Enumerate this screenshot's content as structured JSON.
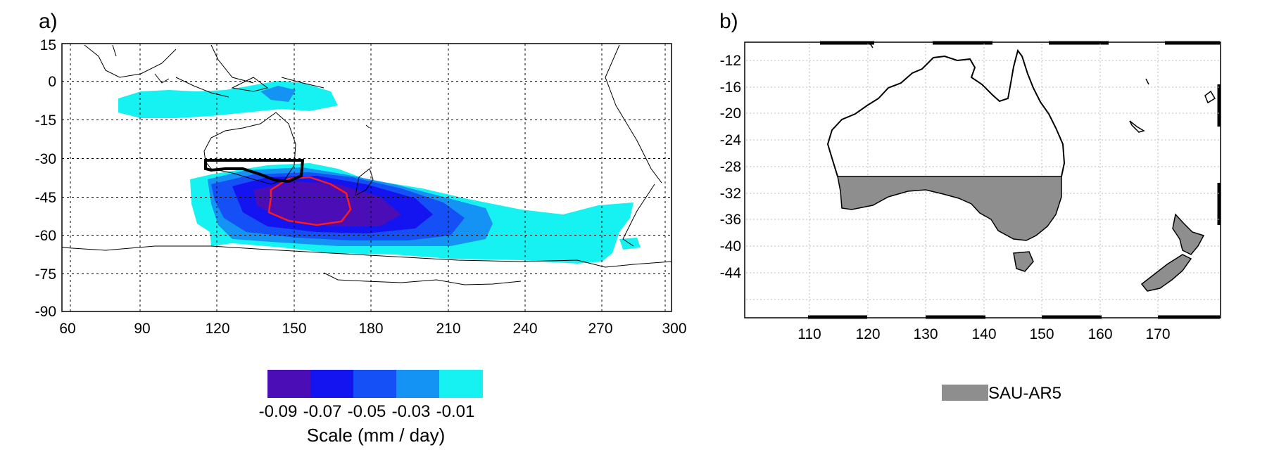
{
  "panel_a": {
    "label": "a)",
    "x_ticks": [
      "60",
      "90",
      "120",
      "150",
      "180",
      "210",
      "240",
      "270",
      "300"
    ],
    "y_ticks": [
      "15",
      "0",
      "-15",
      "-30",
      "-45",
      "-60",
      "-75",
      "-90"
    ],
    "colorbar": {
      "labels": [
        "-0.09",
        "-0.07",
        "-0.05",
        "-0.03",
        "-0.01"
      ],
      "colors": [
        "#4b0db5",
        "#1414f0",
        "#1450f5",
        "#1493f5",
        "#16f2f2"
      ],
      "title": "Scale (mm / day)"
    },
    "contour_color": "#ff1a1a",
    "region_box_color": "#000000"
  },
  "panel_b": {
    "label": "b)",
    "x_ticks": [
      "110",
      "120",
      "130",
      "140",
      "150",
      "160",
      "170"
    ],
    "y_ticks": [
      "-12",
      "-16",
      "-20",
      "-24",
      "-28",
      "-32",
      "-36",
      "-40",
      "-44"
    ],
    "legend": {
      "label": "SAU-AR5",
      "color": "#8e8e8e"
    }
  }
}
